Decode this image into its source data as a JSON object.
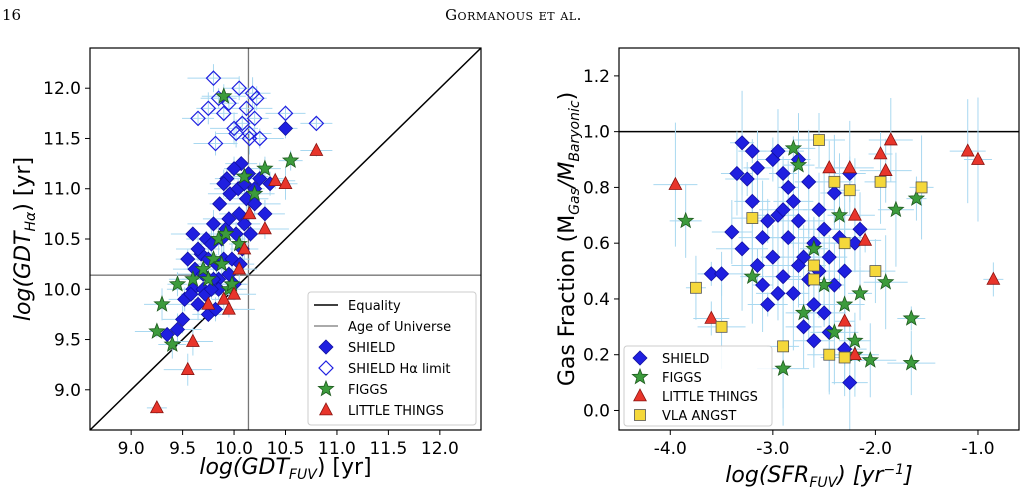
{
  "header": {
    "page_number": "16",
    "running_head": "Gormanous et al."
  },
  "chart_data": [
    {
      "type": "scatter",
      "xlabel_base": "log(GDT",
      "xlabel_sub": "FUV",
      "xlabel_tail": ") [yr]",
      "ylabel_base": "log(GDT",
      "ylabel_sub": "Hα",
      "ylabel_tail": ") [yr]",
      "xlim": [
        8.6,
        12.4
      ],
      "ylim": [
        8.6,
        12.4
      ],
      "xticks": [
        "9.0",
        "9.5",
        "10.0",
        "10.5",
        "11.0",
        "11.5",
        "12.0"
      ],
      "xtick_values": [
        9.0,
        9.5,
        10.0,
        10.5,
        11.0,
        11.5,
        12.0
      ],
      "yticks": [
        "9.0",
        "9.5",
        "10.0",
        "10.5",
        "11.0",
        "11.5",
        "12.0"
      ],
      "ytick_values": [
        9.0,
        9.5,
        10.0,
        10.5,
        11.0,
        11.5,
        12.0
      ],
      "reference_lines": {
        "equality": [
          [
            8.6,
            8.6
          ],
          [
            12.4,
            12.4
          ]
        ],
        "age_of_universe": 10.14
      },
      "legend": {
        "position": "lower-right",
        "entries": [
          "Equality",
          "Age of Universe",
          "SHIELD",
          "SHIELD Hα limit",
          "FIGGS",
          "LITTLE THINGS"
        ]
      },
      "colors": {
        "shield": "#1f1fe0",
        "figgs": "#3c9b3c",
        "little_things": "#e8352b",
        "errorbar": "#a8d8f0"
      },
      "series": [
        {
          "name": "SHIELD",
          "marker": "diamond",
          "points": [
            [
              9.35,
              9.55
            ],
            [
              9.45,
              9.6
            ],
            [
              9.5,
              9.7
            ],
            [
              9.52,
              9.9
            ],
            [
              9.55,
              10.3
            ],
            [
              9.6,
              10.0
            ],
            [
              9.62,
              10.2
            ],
            [
              9.65,
              9.85
            ],
            [
              9.68,
              10.35
            ],
            [
              9.7,
              10.0
            ],
            [
              9.72,
              9.95
            ],
            [
              9.73,
              10.5
            ],
            [
              9.75,
              9.75
            ],
            [
              9.78,
              10.45
            ],
            [
              9.8,
              10.65
            ],
            [
              9.82,
              9.8
            ],
            [
              9.83,
              10.25
            ],
            [
              9.85,
              10.1
            ],
            [
              9.86,
              10.85
            ],
            [
              9.88,
              10.5
            ],
            [
              9.9,
              10.3
            ],
            [
              9.92,
              10.6
            ],
            [
              9.93,
              11.1
            ],
            [
              9.95,
              10.7
            ],
            [
              9.96,
              10.95
            ],
            [
              9.98,
              10.3
            ],
            [
              10.0,
              10.05
            ],
            [
              10.02,
              10.55
            ],
            [
              10.04,
              11.0
            ],
            [
              10.05,
              10.75
            ],
            [
              10.07,
              11.25
            ],
            [
              10.08,
              10.4
            ],
            [
              10.1,
              11.05
            ],
            [
              10.12,
              10.9
            ],
            [
              10.14,
              11.15
            ],
            [
              10.16,
              10.55
            ],
            [
              10.2,
              11.0
            ],
            [
              10.25,
              11.1
            ],
            [
              10.3,
              10.75
            ],
            [
              10.35,
              11.05
            ],
            [
              10.5,
              11.6
            ],
            [
              9.7,
              10.15
            ],
            [
              9.6,
              10.55
            ],
            [
              9.8,
              10.1
            ],
            [
              9.9,
              11.05
            ],
            [
              10.0,
              11.2
            ],
            [
              9.85,
              10.0
            ],
            [
              9.95,
              10.15
            ],
            [
              10.1,
              10.65
            ],
            [
              9.75,
              10.3
            ],
            [
              10.2,
              10.85
            ],
            [
              9.65,
              10.4
            ],
            [
              9.78,
              10.0
            ],
            [
              10.06,
              10.25
            ],
            [
              9.58,
              9.95
            ]
          ]
        },
        {
          "name": "SHIELD Hα limit",
          "marker": "diamond-open",
          "points": [
            [
              9.65,
              11.7
            ],
            [
              9.75,
              11.8
            ],
            [
              9.8,
              12.1
            ],
            [
              9.82,
              11.45
            ],
            [
              9.85,
              11.9
            ],
            [
              9.9,
              11.75
            ],
            [
              9.95,
              11.85
            ],
            [
              10.0,
              11.6
            ],
            [
              10.02,
              11.55
            ],
            [
              10.05,
              12.0
            ],
            [
              10.08,
              11.65
            ],
            [
              10.12,
              11.8
            ],
            [
              10.15,
              11.55
            ],
            [
              10.18,
              11.95
            ],
            [
              10.2,
              11.7
            ],
            [
              10.22,
              11.9
            ],
            [
              10.25,
              11.5
            ],
            [
              10.5,
              11.75
            ],
            [
              10.8,
              11.65
            ],
            [
              10.15,
              11.5
            ]
          ]
        },
        {
          "name": "FIGGS",
          "marker": "star",
          "points": [
            [
              9.25,
              9.58
            ],
            [
              9.3,
              9.85
            ],
            [
              9.4,
              9.45
            ],
            [
              9.45,
              10.05
            ],
            [
              9.6,
              10.1
            ],
            [
              9.7,
              10.2
            ],
            [
              9.8,
              10.3
            ],
            [
              9.85,
              10.5
            ],
            [
              9.88,
              10.25
            ],
            [
              9.9,
              11.92
            ],
            [
              9.95,
              10.0
            ],
            [
              9.98,
              10.05
            ],
            [
              10.05,
              10.45
            ],
            [
              10.1,
              11.12
            ],
            [
              10.2,
              10.95
            ],
            [
              10.3,
              11.2
            ],
            [
              10.55,
              11.28
            ],
            [
              9.75,
              10.1
            ],
            [
              9.92,
              10.55
            ]
          ]
        },
        {
          "name": "LITTLE THINGS",
          "marker": "triangle",
          "points": [
            [
              9.25,
              8.82
            ],
            [
              9.55,
              9.2
            ],
            [
              9.6,
              9.48
            ],
            [
              9.75,
              9.85
            ],
            [
              9.9,
              9.9
            ],
            [
              9.95,
              9.8
            ],
            [
              10.0,
              9.95
            ],
            [
              10.05,
              10.2
            ],
            [
              10.1,
              10.4
            ],
            [
              10.15,
              10.75
            ],
            [
              10.3,
              10.6
            ],
            [
              10.4,
              11.08
            ],
            [
              10.8,
              11.38
            ],
            [
              10.5,
              11.05
            ]
          ]
        }
      ]
    },
    {
      "type": "scatter",
      "xlabel_base": "log(SFR",
      "xlabel_sub": "FUV",
      "xlabel_tail": ") [yr",
      "xlabel_sup": "−1",
      "xlabel_end": "]",
      "ylabel_base": "Gas Fraction (M",
      "ylabel_sub1": "Gas",
      "ylabel_mid": "/M",
      "ylabel_sub2": "Baryonic",
      "ylabel_tail": ")",
      "xlim": [
        -4.5,
        -0.6
      ],
      "ylim": [
        -0.07,
        1.3
      ],
      "xticks": [
        "-4.0",
        "-3.0",
        "-2.0",
        "-1.0"
      ],
      "xtick_values": [
        -4.0,
        -3.0,
        -2.0,
        -1.0
      ],
      "yticks": [
        "0.0",
        "0.2",
        "0.4",
        "0.6",
        "0.8",
        "1.0",
        "1.2"
      ],
      "ytick_values": [
        0.0,
        0.2,
        0.4,
        0.6,
        0.8,
        1.0,
        1.2
      ],
      "reference_lines": {
        "unity": 1.0
      },
      "legend": {
        "position": "lower-left",
        "entries": [
          "SHIELD",
          "FIGGS",
          "LITTLE THINGS",
          "VLA ANGST"
        ]
      },
      "colors": {
        "shield": "#1f1fe0",
        "figgs": "#3c9b3c",
        "little_things": "#e8352b",
        "vla_angst": "#f5d83a",
        "errorbar": "#a8d8f0"
      },
      "series": [
        {
          "name": "SHIELD",
          "marker": "diamond",
          "points": [
            [
              -3.6,
              0.49
            ],
            [
              -3.5,
              0.49
            ],
            [
              -3.4,
              0.64
            ],
            [
              -3.35,
              0.85
            ],
            [
              -3.3,
              0.96
            ],
            [
              -3.3,
              0.58
            ],
            [
              -3.25,
              0.83
            ],
            [
              -3.2,
              0.75
            ],
            [
              -3.15,
              0.87
            ],
            [
              -3.1,
              0.45
            ],
            [
              -3.1,
              0.62
            ],
            [
              -3.05,
              0.38
            ],
            [
              -3.0,
              0.9
            ],
            [
              -3.0,
              0.55
            ],
            [
              -2.95,
              0.93
            ],
            [
              -2.95,
              0.7
            ],
            [
              -2.9,
              0.48
            ],
            [
              -2.9,
              0.85
            ],
            [
              -2.85,
              0.8
            ],
            [
              -2.85,
              0.62
            ],
            [
              -2.8,
              0.75
            ],
            [
              -2.8,
              0.42
            ],
            [
              -2.75,
              0.9
            ],
            [
              -2.75,
              0.68
            ],
            [
              -2.7,
              0.55
            ],
            [
              -2.7,
              0.3
            ],
            [
              -2.65,
              0.82
            ],
            [
              -2.65,
              0.47
            ],
            [
              -2.6,
              0.6
            ],
            [
              -2.6,
              0.25
            ],
            [
              -2.55,
              0.72
            ],
            [
              -2.55,
              0.5
            ],
            [
              -2.5,
              0.65
            ],
            [
              -2.5,
              0.35
            ],
            [
              -2.45,
              0.55
            ],
            [
              -2.4,
              0.78
            ],
            [
              -2.4,
              0.45
            ],
            [
              -2.35,
              0.62
            ],
            [
              -2.3,
              0.5
            ],
            [
              -2.25,
              0.85
            ],
            [
              -2.2,
              0.6
            ],
            [
              -2.15,
              0.65
            ],
            [
              -2.3,
              0.22
            ],
            [
              -2.25,
              0.1
            ],
            [
              -3.2,
              0.93
            ],
            [
              -3.05,
              0.68
            ],
            [
              -2.9,
              0.72
            ],
            [
              -2.75,
              0.52
            ],
            [
              -2.6,
              0.38
            ],
            [
              -2.45,
              0.28
            ],
            [
              -3.15,
              0.52
            ],
            [
              -2.95,
              0.42
            ]
          ]
        },
        {
          "name": "FIGGS",
          "marker": "star",
          "points": [
            [
              -3.85,
              0.68
            ],
            [
              -3.2,
              0.48
            ],
            [
              -2.9,
              0.15
            ],
            [
              -2.8,
              0.94
            ],
            [
              -2.7,
              0.35
            ],
            [
              -2.6,
              0.58
            ],
            [
              -2.5,
              0.45
            ],
            [
              -2.4,
              0.28
            ],
            [
              -2.3,
              0.38
            ],
            [
              -2.2,
              0.25
            ],
            [
              -2.15,
              0.42
            ],
            [
              -2.05,
              0.18
            ],
            [
              -1.9,
              0.46
            ],
            [
              -1.8,
              0.72
            ],
            [
              -1.65,
              0.33
            ],
            [
              -1.6,
              0.76
            ],
            [
              -1.65,
              0.17
            ],
            [
              -2.2,
              0.2
            ],
            [
              -2.75,
              0.88
            ],
            [
              -2.35,
              0.7
            ]
          ]
        },
        {
          "name": "LITTLE THINGS",
          "marker": "triangle",
          "points": [
            [
              -3.95,
              0.81
            ],
            [
              -3.6,
              0.33
            ],
            [
              -2.45,
              0.87
            ],
            [
              -2.3,
              0.32
            ],
            [
              -2.25,
              0.87
            ],
            [
              -2.2,
              0.7
            ],
            [
              -2.1,
              0.61
            ],
            [
              -1.95,
              0.92
            ],
            [
              -1.9,
              0.86
            ],
            [
              -1.85,
              0.97
            ],
            [
              -1.1,
              0.93
            ],
            [
              -1.0,
              0.9
            ],
            [
              -0.85,
              0.47
            ],
            [
              -2.2,
              0.2
            ]
          ]
        },
        {
          "name": "VLA ANGST",
          "marker": "square",
          "points": [
            [
              -3.75,
              0.44
            ],
            [
              -3.5,
              0.3
            ],
            [
              -3.2,
              0.69
            ],
            [
              -2.9,
              0.23
            ],
            [
              -2.6,
              0.52
            ],
            [
              -2.55,
              0.97
            ],
            [
              -2.45,
              0.2
            ],
            [
              -2.4,
              0.82
            ],
            [
              -2.3,
              0.6
            ],
            [
              -2.25,
              0.79
            ],
            [
              -2.3,
              0.19
            ],
            [
              -2.0,
              0.5
            ],
            [
              -1.95,
              0.82
            ],
            [
              -1.55,
              0.8
            ],
            [
              -2.6,
              0.47
            ]
          ]
        }
      ]
    }
  ]
}
